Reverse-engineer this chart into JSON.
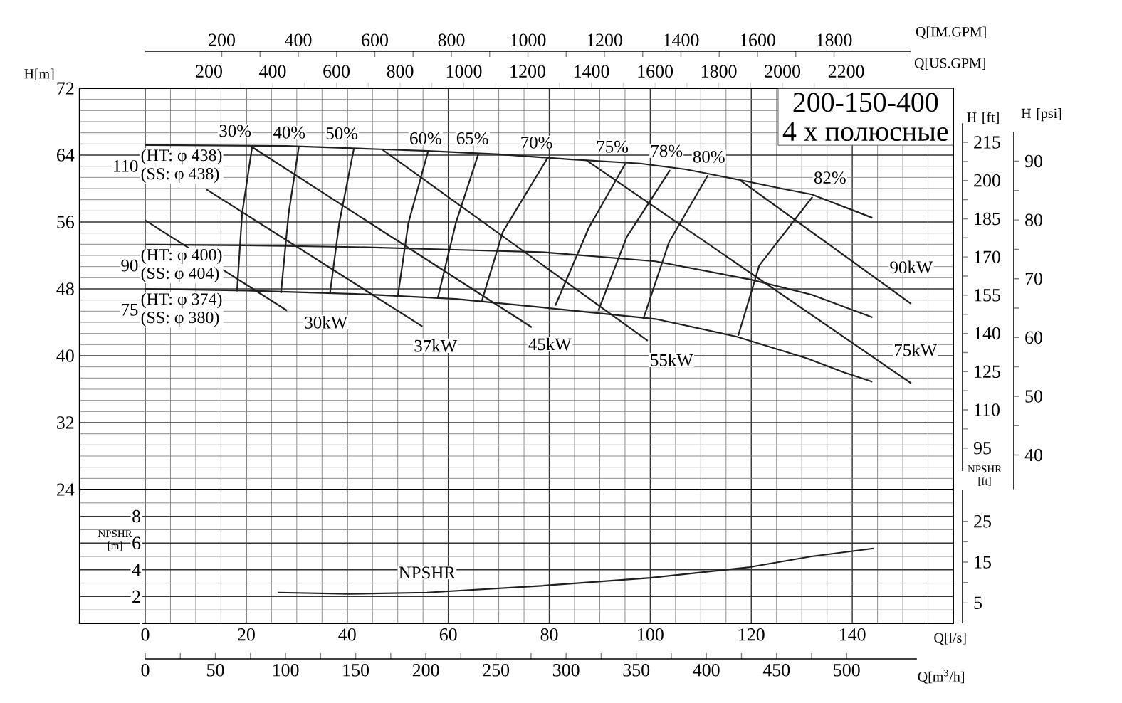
{
  "chart_data": [
    {
      "type": "line",
      "title": "200-150-400",
      "subtitle": "4 х полюсные",
      "xlabel": "Q[US.GPM]",
      "ylabel": "H[m]",
      "x2label": "Q[IM.GPM]",
      "y2label": "H [ft]",
      "y3label": "H [psi]",
      "xlim": [
        -206,
        2536
      ],
      "xticks": [
        200,
        400,
        600,
        800,
        1000,
        1200,
        1400,
        1600,
        1800,
        2000,
        2200
      ],
      "x2lim": [
        0,
        2000
      ],
      "x2ticks": [
        200,
        400,
        600,
        800,
        1000,
        1200,
        1400,
        1600,
        1800
      ],
      "ylim": [
        24,
        72
      ],
      "yticks": [
        24,
        32,
        40,
        48,
        56,
        64,
        72
      ],
      "y2lim": [
        86,
        222.5
      ],
      "y2ticks": [
        95,
        110,
        125,
        140,
        155,
        170,
        185,
        200,
        215
      ],
      "y3lim": [
        34.2,
        95
      ],
      "y3ticks": [
        40,
        50,
        60,
        70,
        80,
        90
      ],
      "grid": "y",
      "marker": "none",
      "line_style": "solid",
      "series": [
        {
          "name": "110",
          "color": "#231f20",
          "x": [
            0,
            444,
            737,
            888,
            1110,
            1331,
            1553,
            1696,
            1870,
            1997,
            2092,
            2282
          ],
          "values": [
            65.2,
            65.1,
            64.7,
            64.5,
            64.1,
            63.5,
            63.0,
            62.3,
            61.0,
            60.0,
            59.3,
            56.5
          ]
        },
        {
          "name": "90",
          "color": "#231f20",
          "x": [
            0,
            317,
            661,
            951,
            1243,
            1601,
            1902,
            2092,
            2282
          ],
          "values": [
            53.3,
            53.2,
            53.0,
            52.7,
            52.4,
            51.3,
            49.1,
            47.3,
            44.6
          ]
        },
        {
          "name": "75",
          "color": "#231f20",
          "x": [
            0,
            317,
            661,
            975,
            1243,
            1601,
            1855,
            2076,
            2194,
            2282
          ],
          "values": [
            48.0,
            47.8,
            47.4,
            46.8,
            45.8,
            44.4,
            42.3,
            39.7,
            38.0,
            36.9
          ]
        },
        {
          "color": "#231f20",
          "x": [
            288,
            304,
            336
          ],
          "values": [
            47.7,
            57.0,
            65.1
          ]
        },
        {
          "color": "#231f20",
          "x": [
            426,
            450,
            482
          ],
          "values": [
            47.5,
            57.0,
            65.0
          ]
        },
        {
          "color": "#231f20",
          "x": [
            580,
            609,
            655
          ],
          "values": [
            47.5,
            55.9,
            64.8
          ]
        },
        {
          "color": "#231f20",
          "x": [
            793,
            826,
            888
          ],
          "values": [
            47.2,
            55.9,
            64.5
          ]
        },
        {
          "color": "#231f20",
          "x": [
            918,
            975,
            1046
          ],
          "values": [
            46.9,
            55.9,
            64.2
          ]
        },
        {
          "color": "#231f20",
          "x": [
            1056,
            1122,
            1265
          ],
          "values": [
            46.5,
            54.8,
            63.8
          ]
        },
        {
          "color": "#231f20",
          "x": [
            1287,
            1392,
            1507
          ],
          "values": [
            46.0,
            55.3,
            63.0
          ]
        },
        {
          "color": "#231f20",
          "x": [
            1422,
            1511,
            1647
          ],
          "values": [
            45.4,
            54.2,
            62.2
          ]
        },
        {
          "color": "#231f20",
          "x": [
            1563,
            1644,
            1766
          ],
          "values": [
            44.4,
            53.6,
            61.6
          ]
        },
        {
          "color": "#231f20",
          "x": [
            1861,
            1927,
            2094
          ],
          "values": [
            42.4,
            50.8,
            59.0
          ]
        },
        {
          "color": "#231f20",
          "x": [
            0,
            445
          ],
          "values": [
            56.2,
            45.4
          ]
        },
        {
          "color": "#231f20",
          "x": [
            192,
            870
          ],
          "values": [
            59.9,
            43.5
          ]
        },
        {
          "color": "#231f20",
          "x": [
            334,
            1213
          ],
          "values": [
            65.0,
            43.4
          ]
        },
        {
          "color": "#231f20",
          "x": [
            743,
            1577
          ],
          "values": [
            64.7,
            41.8
          ]
        },
        {
          "color": "#231f20",
          "x": [
            1384,
            2404
          ],
          "values": [
            63.4,
            36.7
          ]
        },
        {
          "color": "#231f20",
          "x": [
            1867,
            2404
          ],
          "values": [
            61.0,
            46.2
          ]
        }
      ],
      "annotations": [
        "(HT: φ 438)",
        "(SS: φ 438)",
        "(HT: φ 400)",
        "(SS: φ 404)",
        "(HT: φ 374)",
        "(SS: φ 380)",
        {
          "text": "30%",
          "x": 282,
          "y": 66.9
        },
        {
          "text": "40%",
          "x": 452,
          "y": 66.7
        },
        {
          "text": "50%",
          "x": 617,
          "y": 66.6
        },
        {
          "text": "60%",
          "x": 880,
          "y": 66.0
        },
        {
          "text": "65%",
          "x": 1027,
          "y": 66.0
        },
        {
          "text": "70%",
          "x": 1228,
          "y": 65.5
        },
        {
          "text": "75%",
          "x": 1466,
          "y": 65.0
        },
        {
          "text": "78%",
          "x": 1636,
          "y": 64.5
        },
        {
          "text": "80%",
          "x": 1769,
          "y": 63.8
        },
        {
          "text": "82%",
          "x": 2149,
          "y": 61.3
        },
        {
          "text": "30kW",
          "x": 567,
          "y": 44.0
        },
        {
          "text": "37kW",
          "x": 911,
          "y": 41.2
        },
        {
          "text": "45kW",
          "x": 1270,
          "y": 41.4
        },
        {
          "text": "55kW",
          "x": 1652,
          "y": 39.5
        },
        {
          "text": "75kW",
          "x": 2417,
          "y": 40.7
        },
        {
          "text": "90kW",
          "x": 2404,
          "y": 50.6
        }
      ]
    },
    {
      "type": "line",
      "xlabel": "Q[l/s]",
      "ylabel": "NPSHR [m]",
      "y2label": "NPSHR [ft]",
      "x2label": "Q[m$^{3}$/h]",
      "xlim": [
        -13,
        160
      ],
      "xticks": [
        0,
        20,
        40,
        60,
        80,
        100,
        120,
        140,
        {
          "value": 160,
          "label": null
        }
      ],
      "ylim": [
        0,
        10
      ],
      "yticks": [
        {
          "value": 0,
          "label": null
        },
        2,
        4,
        6,
        8,
        {
          "value": 10,
          "label": null
        }
      ],
      "y2lim": [
        0,
        32.8
      ],
      "y2ticks": [
        5,
        15,
        25
      ],
      "x2lim": [
        0,
        550
      ],
      "x2ticks": [
        0,
        50,
        100,
        150,
        200,
        250,
        300,
        350,
        400,
        450,
        500
      ],
      "grid": true,
      "marker": "none",
      "line_style": "solid",
      "series": [
        {
          "name": "NPSHR",
          "color": "#231f20",
          "x": [
            26.2,
            40.3,
            55.8,
            78.4,
            100,
            119.7,
            131.9,
            144.2
          ],
          "values": [
            2.3,
            2.2,
            2.3,
            2.8,
            3.4,
            4.2,
            5.0,
            5.6
          ]
        }
      ]
    }
  ]
}
